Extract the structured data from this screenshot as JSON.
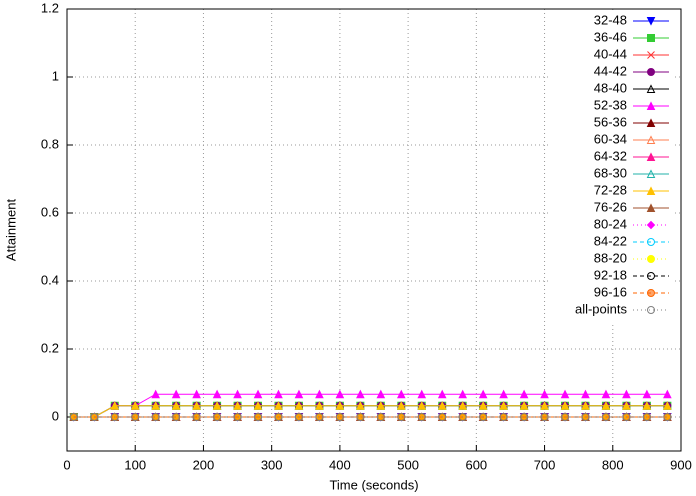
{
  "chart_data": {
    "type": "line",
    "xlabel": "Time (seconds)",
    "ylabel": "Attainment",
    "xlim": [
      0,
      900
    ],
    "xticks": [
      0,
      100,
      200,
      300,
      400,
      500,
      600,
      700,
      800,
      900
    ],
    "ylim": [
      -0.1,
      1.2
    ],
    "yticks": [
      0,
      0.2,
      0.4,
      0.6,
      0.8,
      1,
      1.2
    ],
    "grid": true,
    "legend": "top-right",
    "x": [
      10,
      40,
      70,
      100,
      130,
      160,
      190,
      220,
      250,
      280,
      310,
      340,
      370,
      400,
      430,
      460,
      490,
      520,
      550,
      580,
      610,
      640,
      670,
      700,
      730,
      760,
      790,
      820,
      850,
      880
    ],
    "series": [
      {
        "name": "32-48",
        "color": "#0000ff",
        "marker": "tri-down",
        "dash": "solid",
        "values": [
          0,
          0,
          0,
          0,
          0,
          0,
          0,
          0,
          0,
          0,
          0,
          0,
          0,
          0,
          0,
          0,
          0,
          0,
          0,
          0,
          0,
          0,
          0,
          0,
          0,
          0,
          0,
          0,
          0,
          0
        ]
      },
      {
        "name": "36-46",
        "color": "#33cc33",
        "marker": "square",
        "dash": "solid",
        "values": [
          0,
          0,
          0.033,
          0.033,
          0.033,
          0.033,
          0.033,
          0.033,
          0.033,
          0.033,
          0.033,
          0.033,
          0.033,
          0.033,
          0.033,
          0.033,
          0.033,
          0.033,
          0.033,
          0.033,
          0.033,
          0.033,
          0.033,
          0.033,
          0.033,
          0.033,
          0.033,
          0.033,
          0.033,
          0.033
        ]
      },
      {
        "name": "40-44",
        "color": "#ff3333",
        "marker": "star",
        "dash": "solid",
        "values": [
          0,
          0,
          0,
          0,
          0,
          0,
          0,
          0,
          0,
          0,
          0,
          0,
          0,
          0,
          0,
          0,
          0,
          0,
          0,
          0,
          0,
          0,
          0,
          0,
          0,
          0,
          0,
          0,
          0,
          0
        ]
      },
      {
        "name": "44-42",
        "color": "#800080",
        "marker": "circle",
        "dash": "solid",
        "values": [
          0,
          0,
          0.033,
          0.033,
          0.033,
          0.033,
          0.033,
          0.033,
          0.033,
          0.033,
          0.033,
          0.033,
          0.033,
          0.033,
          0.033,
          0.033,
          0.033,
          0.033,
          0.033,
          0.033,
          0.033,
          0.033,
          0.033,
          0.033,
          0.033,
          0.033,
          0.033,
          0.033,
          0.033,
          0.033
        ]
      },
      {
        "name": "48-40",
        "color": "#000000",
        "marker": "tri-open",
        "dash": "solid",
        "values": [
          0,
          0,
          0,
          0,
          0,
          0,
          0,
          0,
          0,
          0,
          0,
          0,
          0,
          0,
          0,
          0,
          0,
          0,
          0,
          0,
          0,
          0,
          0,
          0,
          0,
          0,
          0,
          0,
          0,
          0
        ]
      },
      {
        "name": "52-38",
        "color": "#ff00ff",
        "marker": "tri",
        "dash": "solid",
        "values": [
          0,
          0,
          0.033,
          0.033,
          0.067,
          0.067,
          0.067,
          0.067,
          0.067,
          0.067,
          0.067,
          0.067,
          0.067,
          0.067,
          0.067,
          0.067,
          0.067,
          0.067,
          0.067,
          0.067,
          0.067,
          0.067,
          0.067,
          0.067,
          0.067,
          0.067,
          0.067,
          0.067,
          0.067,
          0.067
        ]
      },
      {
        "name": "56-36",
        "color": "#800000",
        "marker": "tri",
        "dash": "solid",
        "values": [
          0,
          0,
          0,
          0,
          0,
          0,
          0,
          0,
          0,
          0,
          0,
          0,
          0,
          0,
          0,
          0,
          0,
          0,
          0,
          0,
          0,
          0,
          0,
          0,
          0,
          0,
          0,
          0,
          0,
          0
        ]
      },
      {
        "name": "60-34",
        "color": "#ff7f50",
        "marker": "tri-open",
        "dash": "solid",
        "values": [
          0,
          0,
          0,
          0,
          0,
          0,
          0,
          0,
          0,
          0,
          0,
          0,
          0,
          0,
          0,
          0,
          0,
          0,
          0,
          0,
          0,
          0,
          0,
          0,
          0,
          0,
          0,
          0,
          0,
          0
        ]
      },
      {
        "name": "64-32",
        "color": "#ff1493",
        "marker": "tri",
        "dash": "solid",
        "values": [
          0,
          0,
          0,
          0,
          0,
          0,
          0,
          0,
          0,
          0,
          0,
          0,
          0,
          0,
          0,
          0,
          0,
          0,
          0,
          0,
          0,
          0,
          0,
          0,
          0,
          0,
          0,
          0,
          0,
          0
        ]
      },
      {
        "name": "68-30",
        "color": "#20b2aa",
        "marker": "tri-open",
        "dash": "solid",
        "values": [
          0,
          0,
          0.033,
          0.033,
          0.033,
          0.033,
          0.033,
          0.033,
          0.033,
          0.033,
          0.033,
          0.033,
          0.033,
          0.033,
          0.033,
          0.033,
          0.033,
          0.033,
          0.033,
          0.033,
          0.033,
          0.033,
          0.033,
          0.033,
          0.033,
          0.033,
          0.033,
          0.033,
          0.033,
          0.033
        ]
      },
      {
        "name": "72-28",
        "color": "#ffc000",
        "marker": "tri",
        "dash": "solid",
        "values": [
          0,
          0,
          0.033,
          0.033,
          0.033,
          0.033,
          0.033,
          0.033,
          0.033,
          0.033,
          0.033,
          0.033,
          0.033,
          0.033,
          0.033,
          0.033,
          0.033,
          0.033,
          0.033,
          0.033,
          0.033,
          0.033,
          0.033,
          0.033,
          0.033,
          0.033,
          0.033,
          0.033,
          0.033,
          0.033
        ]
      },
      {
        "name": "76-26",
        "color": "#a0522d",
        "marker": "tri",
        "dash": "solid",
        "values": [
          0,
          0,
          0,
          0,
          0,
          0,
          0,
          0,
          0,
          0,
          0,
          0,
          0,
          0,
          0,
          0,
          0,
          0,
          0,
          0,
          0,
          0,
          0,
          0,
          0,
          0,
          0,
          0,
          0,
          0
        ]
      },
      {
        "name": "80-24",
        "color": "#ff00ff",
        "marker": "diamond",
        "dash": "dotted",
        "values": [
          0,
          0,
          0,
          0,
          0,
          0,
          0,
          0,
          0,
          0,
          0,
          0,
          0,
          0,
          0,
          0,
          0,
          0,
          0,
          0,
          0,
          0,
          0,
          0,
          0,
          0,
          0,
          0,
          0,
          0
        ]
      },
      {
        "name": "84-22",
        "color": "#00ccff",
        "marker": "circle-open",
        "dash": "dashed",
        "values": [
          0,
          0,
          0,
          0,
          0,
          0,
          0,
          0,
          0,
          0,
          0,
          0,
          0,
          0,
          0,
          0,
          0,
          0,
          0,
          0,
          0,
          0,
          0,
          0,
          0,
          0,
          0,
          0,
          0,
          0
        ]
      },
      {
        "name": "88-20",
        "color": "#ffff00",
        "marker": "circle",
        "dash": "dotted",
        "values": [
          0,
          0,
          0,
          0,
          0,
          0,
          0,
          0,
          0,
          0,
          0,
          0,
          0,
          0,
          0,
          0,
          0,
          0,
          0,
          0,
          0,
          0,
          0,
          0,
          0,
          0,
          0,
          0,
          0,
          0
        ]
      },
      {
        "name": "92-18",
        "color": "#000000",
        "marker": "circle-open",
        "dash": "dashed",
        "values": [
          0,
          0,
          0,
          0,
          0,
          0,
          0,
          0,
          0,
          0,
          0,
          0,
          0,
          0,
          0,
          0,
          0,
          0,
          0,
          0,
          0,
          0,
          0,
          0,
          0,
          0,
          0,
          0,
          0,
          0
        ]
      },
      {
        "name": "96-16",
        "color": "#ff6600",
        "marker": "circle-half",
        "dash": "dashed",
        "values": [
          0,
          0,
          0,
          0,
          0,
          0,
          0,
          0,
          0,
          0,
          0,
          0,
          0,
          0,
          0,
          0,
          0,
          0,
          0,
          0,
          0,
          0,
          0,
          0,
          0,
          0,
          0,
          0,
          0,
          0
        ]
      },
      {
        "name": "all-points",
        "color": "#808080",
        "marker": "circle-open",
        "dash": "dotted",
        "values": [
          0,
          0,
          0,
          0,
          0,
          0,
          0,
          0,
          0,
          0,
          0,
          0,
          0,
          0,
          0,
          0,
          0,
          0,
          0,
          0,
          0,
          0,
          0,
          0,
          0,
          0,
          0,
          0,
          0,
          0
        ]
      }
    ]
  }
}
